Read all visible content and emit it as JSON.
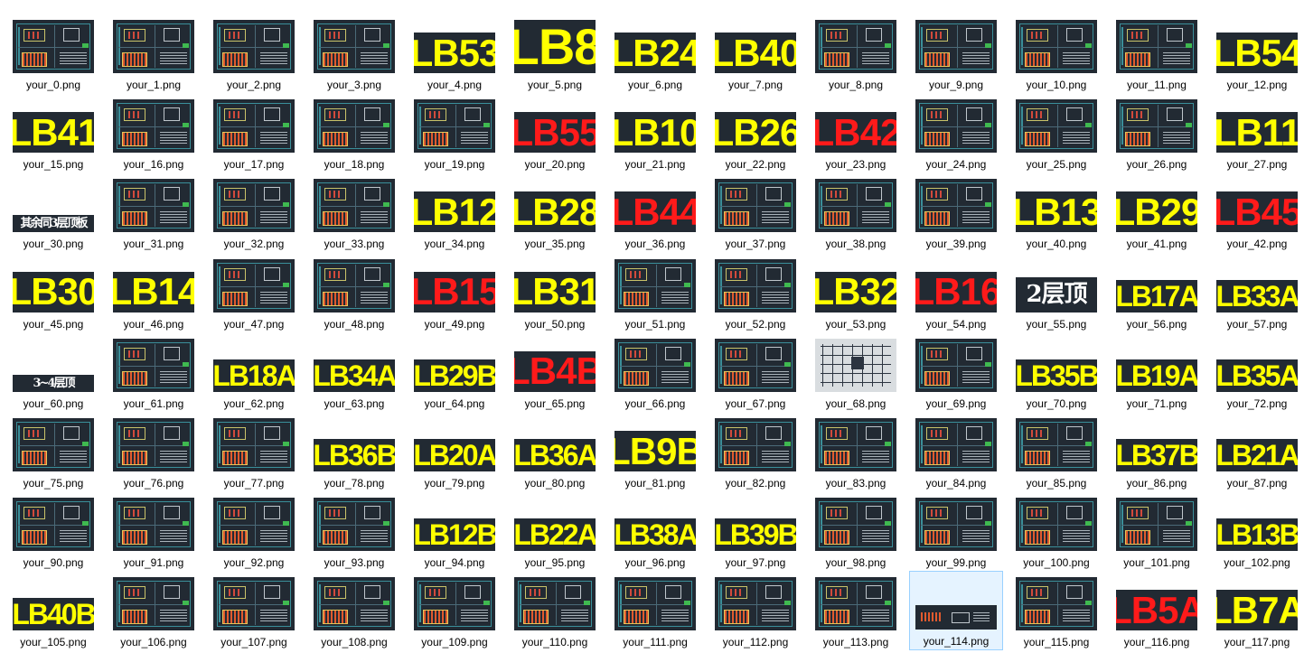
{
  "files": [
    {
      "name": "your_0.png",
      "kind": "cad"
    },
    {
      "name": "your_1.png",
      "kind": "cad"
    },
    {
      "name": "your_2.png",
      "kind": "cad"
    },
    {
      "name": "your_3.png",
      "kind": "cad"
    },
    {
      "name": "your_4.png",
      "kind": "label",
      "text": "LB53",
      "color": "#ffff00"
    },
    {
      "name": "your_5.png",
      "kind": "label",
      "text": "LB8",
      "color": "#ffff00"
    },
    {
      "name": "your_6.png",
      "kind": "label",
      "text": "LB24",
      "color": "#ffff00"
    },
    {
      "name": "your_7.png",
      "kind": "label",
      "text": "LB40",
      "color": "#ffff00"
    },
    {
      "name": "your_8.png",
      "kind": "cad"
    },
    {
      "name": "your_9.png",
      "kind": "cad"
    },
    {
      "name": "your_10.png",
      "kind": "cad"
    },
    {
      "name": "your_11.png",
      "kind": "cad"
    },
    {
      "name": "your_12.png",
      "kind": "label",
      "text": "LB54",
      "color": "#ffff00"
    },
    {
      "name": "your_15.png",
      "kind": "label",
      "text": "LB41",
      "color": "#ffff00"
    },
    {
      "name": "your_16.png",
      "kind": "cad"
    },
    {
      "name": "your_17.png",
      "kind": "cad"
    },
    {
      "name": "your_18.png",
      "kind": "cad"
    },
    {
      "name": "your_19.png",
      "kind": "cad"
    },
    {
      "name": "your_20.png",
      "kind": "label",
      "text": "LB55",
      "color": "#ff1a1a"
    },
    {
      "name": "your_21.png",
      "kind": "label",
      "text": "LB10",
      "color": "#ffff00"
    },
    {
      "name": "your_22.png",
      "kind": "label",
      "text": "LB26",
      "color": "#ffff00"
    },
    {
      "name": "your_23.png",
      "kind": "label",
      "text": "LB42",
      "color": "#ff1a1a"
    },
    {
      "name": "your_24.png",
      "kind": "cad"
    },
    {
      "name": "your_25.png",
      "kind": "cad"
    },
    {
      "name": "your_26.png",
      "kind": "cad"
    },
    {
      "name": "your_27.png",
      "kind": "label",
      "text": "LB11",
      "color": "#ffff00"
    },
    {
      "name": "your_30.png",
      "kind": "label",
      "text": "其余同3层顶板",
      "color": "#ffffff"
    },
    {
      "name": "your_31.png",
      "kind": "cad"
    },
    {
      "name": "your_32.png",
      "kind": "cad"
    },
    {
      "name": "your_33.png",
      "kind": "cad"
    },
    {
      "name": "your_34.png",
      "kind": "label",
      "text": "LB12",
      "color": "#ffff00"
    },
    {
      "name": "your_35.png",
      "kind": "label",
      "text": "LB28",
      "color": "#ffff00"
    },
    {
      "name": "your_36.png",
      "kind": "label",
      "text": "LB44",
      "color": "#ff1a1a"
    },
    {
      "name": "your_37.png",
      "kind": "cad"
    },
    {
      "name": "your_38.png",
      "kind": "cad"
    },
    {
      "name": "your_39.png",
      "kind": "cad"
    },
    {
      "name": "your_40.png",
      "kind": "label",
      "text": "LB13",
      "color": "#ffff00"
    },
    {
      "name": "your_41.png",
      "kind": "label",
      "text": "LB29",
      "color": "#ffff00"
    },
    {
      "name": "your_42.png",
      "kind": "label",
      "text": "LB45",
      "color": "#ff1a1a"
    },
    {
      "name": "your_45.png",
      "kind": "label",
      "text": "LB30",
      "color": "#ffff00"
    },
    {
      "name": "your_46.png",
      "kind": "label",
      "text": "LB14",
      "color": "#ffff00"
    },
    {
      "name": "your_47.png",
      "kind": "cad"
    },
    {
      "name": "your_48.png",
      "kind": "cad"
    },
    {
      "name": "your_49.png",
      "kind": "label",
      "text": "LB15",
      "color": "#ff1a1a"
    },
    {
      "name": "your_50.png",
      "kind": "label",
      "text": "LB31",
      "color": "#ffff00"
    },
    {
      "name": "your_51.png",
      "kind": "cad"
    },
    {
      "name": "your_52.png",
      "kind": "cad"
    },
    {
      "name": "your_53.png",
      "kind": "label",
      "text": "LB32",
      "color": "#ffff00"
    },
    {
      "name": "your_54.png",
      "kind": "label",
      "text": "LB16",
      "color": "#ff1a1a"
    },
    {
      "name": "your_55.png",
      "kind": "label",
      "text": "2层顶",
      "color": "#ffffff"
    },
    {
      "name": "your_56.png",
      "kind": "label",
      "text": "LB17A",
      "color": "#ffff00"
    },
    {
      "name": "your_57.png",
      "kind": "label",
      "text": "LB33A",
      "color": "#ffff00"
    },
    {
      "name": "your_60.png",
      "kind": "label",
      "text": "3~4层顶",
      "color": "#ffffff"
    },
    {
      "name": "your_61.png",
      "kind": "cad"
    },
    {
      "name": "your_62.png",
      "kind": "label",
      "text": "LB18A",
      "color": "#ffff00"
    },
    {
      "name": "your_63.png",
      "kind": "label",
      "text": "LB34A",
      "color": "#ffff00"
    },
    {
      "name": "your_64.png",
      "kind": "label",
      "text": "LB29B",
      "color": "#ffff00"
    },
    {
      "name": "your_65.png",
      "kind": "label",
      "text": "LB4B",
      "color": "#ff1a1a"
    },
    {
      "name": "your_66.png",
      "kind": "cad"
    },
    {
      "name": "your_67.png",
      "kind": "cad"
    },
    {
      "name": "your_68.png",
      "kind": "plan"
    },
    {
      "name": "your_69.png",
      "kind": "cad"
    },
    {
      "name": "your_70.png",
      "kind": "label",
      "text": "LB35B",
      "color": "#ffff00"
    },
    {
      "name": "your_71.png",
      "kind": "label",
      "text": "LB19A",
      "color": "#ffff00"
    },
    {
      "name": "your_72.png",
      "kind": "label",
      "text": "LB35A",
      "color": "#ffff00"
    },
    {
      "name": "your_75.png",
      "kind": "cad"
    },
    {
      "name": "your_76.png",
      "kind": "cad"
    },
    {
      "name": "your_77.png",
      "kind": "cad"
    },
    {
      "name": "your_78.png",
      "kind": "label",
      "text": "LB36B",
      "color": "#ffff00"
    },
    {
      "name": "your_79.png",
      "kind": "label",
      "text": "LB20A",
      "color": "#ffff00"
    },
    {
      "name": "your_80.png",
      "kind": "label",
      "text": "LB36A",
      "color": "#ffff00"
    },
    {
      "name": "your_81.png",
      "kind": "label",
      "text": "LB9B",
      "color": "#ffff00"
    },
    {
      "name": "your_82.png",
      "kind": "cad"
    },
    {
      "name": "your_83.png",
      "kind": "cad"
    },
    {
      "name": "your_84.png",
      "kind": "cad"
    },
    {
      "name": "your_85.png",
      "kind": "cad"
    },
    {
      "name": "your_86.png",
      "kind": "label",
      "text": "LB37B",
      "color": "#ffff00"
    },
    {
      "name": "your_87.png",
      "kind": "label",
      "text": "LB21A",
      "color": "#ffff00"
    },
    {
      "name": "your_90.png",
      "kind": "cad"
    },
    {
      "name": "your_91.png",
      "kind": "cad"
    },
    {
      "name": "your_92.png",
      "kind": "cad"
    },
    {
      "name": "your_93.png",
      "kind": "cad"
    },
    {
      "name": "your_94.png",
      "kind": "label",
      "text": "LB12B",
      "color": "#ffff00"
    },
    {
      "name": "your_95.png",
      "kind": "label",
      "text": "LB22A",
      "color": "#ffff00"
    },
    {
      "name": "your_96.png",
      "kind": "label",
      "text": "LB38A",
      "color": "#ffff00"
    },
    {
      "name": "your_97.png",
      "kind": "label",
      "text": "LB39B",
      "color": "#ffff00"
    },
    {
      "name": "your_98.png",
      "kind": "cad"
    },
    {
      "name": "your_99.png",
      "kind": "cad"
    },
    {
      "name": "your_100.png",
      "kind": "cad"
    },
    {
      "name": "your_101.png",
      "kind": "cad"
    },
    {
      "name": "your_102.png",
      "kind": "label",
      "text": "LB13B",
      "color": "#ffff00"
    },
    {
      "name": "your_105.png",
      "kind": "label",
      "text": "LB40B",
      "color": "#ffff00"
    },
    {
      "name": "your_106.png",
      "kind": "cad"
    },
    {
      "name": "your_107.png",
      "kind": "cad"
    },
    {
      "name": "your_108.png",
      "kind": "cad"
    },
    {
      "name": "your_109.png",
      "kind": "cad"
    },
    {
      "name": "your_110.png",
      "kind": "cad"
    },
    {
      "name": "your_111.png",
      "kind": "cad"
    },
    {
      "name": "your_112.png",
      "kind": "cad"
    },
    {
      "name": "your_113.png",
      "kind": "cad"
    },
    {
      "name": "your_114.png",
      "kind": "cad-small",
      "selected": true
    },
    {
      "name": "your_115.png",
      "kind": "cad"
    },
    {
      "name": "your_116.png",
      "kind": "label",
      "text": "LB5A",
      "color": "#ff1a1a"
    },
    {
      "name": "your_117.png",
      "kind": "label",
      "text": "LB7A",
      "color": "#ffff00"
    }
  ]
}
